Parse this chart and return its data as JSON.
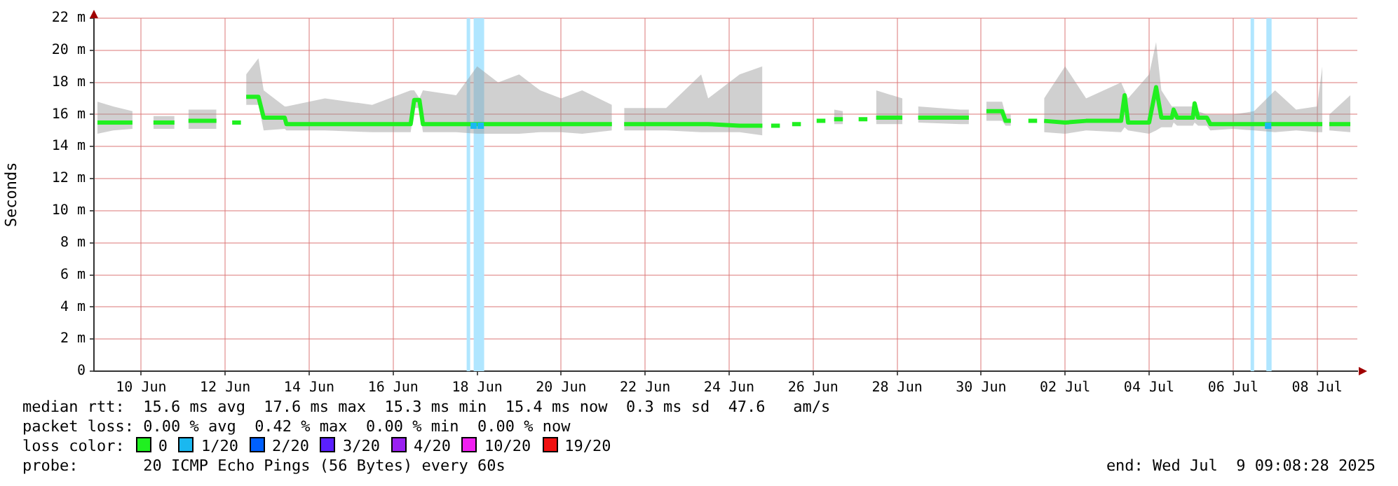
{
  "chart_data": {
    "type": "line",
    "ylabel": "Seconds",
    "legend_title": "loss color:",
    "legend": "bottom",
    "grid": true,
    "marker": "none",
    "line_style": "solid",
    "xlim": [
      "2025-06-08T21:00",
      "2025-07-08T23:00"
    ],
    "xticks": [
      {
        "value": "2025-06-10",
        "label": "10 Jun"
      },
      {
        "value": "2025-06-12",
        "label": "12 Jun"
      },
      {
        "value": "2025-06-14",
        "label": "14 Jun"
      },
      {
        "value": "2025-06-16",
        "label": "16 Jun"
      },
      {
        "value": "2025-06-18",
        "label": "18 Jun"
      },
      {
        "value": "2025-06-20",
        "label": "20 Jun"
      },
      {
        "value": "2025-06-22",
        "label": "22 Jun"
      },
      {
        "value": "2025-06-24",
        "label": "24 Jun"
      },
      {
        "value": "2025-06-26",
        "label": "26 Jun"
      },
      {
        "value": "2025-06-28",
        "label": "28 Jun"
      },
      {
        "value": "2025-06-30",
        "label": "30 Jun"
      },
      {
        "value": "2025-07-02",
        "label": "02 Jul"
      },
      {
        "value": "2025-07-04",
        "label": "04 Jul"
      },
      {
        "value": "2025-07-06",
        "label": "06 Jul"
      },
      {
        "value": "2025-07-08",
        "label": "08 Jul"
      }
    ],
    "ylim": [
      0,
      22
    ],
    "yticks": [
      0,
      {
        "value": 2,
        "label": "2 m"
      },
      {
        "value": 4,
        "label": "4 m"
      },
      {
        "value": 6,
        "label": "6 m"
      },
      {
        "value": 8,
        "label": "8 m"
      },
      {
        "value": 10,
        "label": "10 m"
      },
      {
        "value": 12,
        "label": "12 m"
      },
      {
        "value": 14,
        "label": "14 m"
      },
      {
        "value": 16,
        "label": "16 m"
      },
      {
        "value": 18,
        "label": "18 m"
      },
      {
        "value": 20,
        "label": "20 m"
      },
      {
        "value": 22,
        "label": "22 m"
      }
    ],
    "bands": [
      {
        "axis": "x",
        "from": "2025-06-17T18:00",
        "to": "2025-06-17T20:00",
        "color": "#b0e6ff"
      },
      {
        "axis": "x",
        "from": "2025-06-17T22:00",
        "to": "2025-06-18T04:00",
        "color": "#b0e6ff"
      },
      {
        "axis": "x",
        "from": "2025-07-06T10:00",
        "to": "2025-07-06T12:00",
        "color": "#b0e6ff"
      },
      {
        "axis": "x",
        "from": "2025-07-06T19:00",
        "to": "2025-07-06T22:00",
        "color": "#b0e6ff"
      }
    ],
    "series": [
      {
        "name": "0",
        "color": "#20f020",
        "x": [
          "2025-06-08T23:00",
          "2025-06-09T08:00",
          "2025-06-09T19:00",
          "2025-06-09T22:00",
          "2025-06-10T07:00",
          "2025-06-10T19:00",
          "2025-06-10T22:00",
          "2025-06-11T03:00",
          "2025-06-11T19:00",
          "2025-06-11T22:00",
          "2025-06-12T04:00",
          "2025-06-12T09:00",
          "2025-06-12T10:00",
          "2025-06-12T12:00",
          "2025-06-12T19:00",
          "2025-06-12T22:00",
          "2025-06-13T10:00",
          "2025-06-13T11:00",
          "2025-06-14T09:00",
          "2025-06-15T12:00",
          "2025-06-16T10:00",
          "2025-06-16T12:00",
          "2025-06-16T15:00",
          "2025-06-16T17:00",
          "2025-06-17T12:00",
          "2025-06-18T00:00",
          "2025-06-18T12:00",
          "2025-06-19T00:00",
          "2025-06-19T12:00",
          "2025-06-20T00:00",
          "2025-06-20T12:00",
          "2025-06-21T05:00",
          "2025-06-21T07:00",
          "2025-06-21T12:00",
          "2025-06-22T12:00",
          "2025-06-23T08:00",
          "2025-06-23T12:00",
          "2025-06-24T06:00",
          "2025-06-24T19:00",
          "2025-06-24T23:00",
          "2025-06-25T00:00",
          "2025-06-25T05:00",
          "2025-06-25T07:00",
          "2025-06-25T12:00",
          "2025-06-25T17:00",
          "2025-06-25T22:00",
          "2025-06-26T02:00",
          "2025-06-26T07:00",
          "2025-06-26T09:00",
          "2025-06-26T12:00",
          "2025-06-26T17:00",
          "2025-06-26T22:00",
          "2025-06-27T02:00",
          "2025-06-27T07:00",
          "2025-06-27T09:00",
          "2025-06-27T12:00",
          "2025-06-28T03:00",
          "2025-06-28T07:00",
          "2025-06-28T12:00",
          "2025-06-29T12:00",
          "2025-06-29T17:00",
          "2025-06-29T22:00",
          "2025-06-30T03:00",
          "2025-06-30T12:00",
          "2025-06-30T14:00",
          "2025-06-30T17:00",
          "2025-06-30T22:00",
          "2025-07-01T03:00",
          "2025-07-01T08:00",
          "2025-07-01T10:00",
          "2025-07-01T12:00",
          "2025-07-02T00:00",
          "2025-07-02T12:00",
          "2025-07-03T08:00",
          "2025-07-03T10:00",
          "2025-07-03T12:00",
          "2025-07-04T00:00",
          "2025-07-04T04:00",
          "2025-07-04T07:00",
          "2025-07-04T13:00",
          "2025-07-04T14:00",
          "2025-07-04T16:00",
          "2025-07-05T01:00",
          "2025-07-05T02:00",
          "2025-07-05T04:00",
          "2025-07-05T09:00",
          "2025-07-05T11:00",
          "2025-07-06T00:00",
          "2025-07-06T12:00",
          "2025-07-07T00:00",
          "2025-07-07T12:00",
          "2025-07-08T00:00",
          "2025-07-08T03:00",
          "2025-07-08T05:00",
          "2025-07-08T07:00",
          "2025-07-08T19:00"
        ],
        "values": [
          15.5,
          15.5,
          15.5,
          null,
          15.5,
          15.5,
          null,
          15.6,
          15.6,
          null,
          15.5,
          15.5,
          null,
          17.1,
          17.1,
          15.8,
          15.8,
          15.4,
          15.4,
          15.4,
          15.4,
          16.9,
          16.9,
          15.4,
          15.4,
          15.4,
          15.4,
          15.4,
          15.4,
          15.4,
          15.4,
          15.4,
          null,
          15.4,
          15.4,
          15.4,
          15.4,
          15.3,
          15.3,
          null,
          15.3,
          15.3,
          null,
          15.4,
          15.4,
          null,
          15.6,
          15.6,
          null,
          15.7,
          15.7,
          null,
          15.7,
          15.7,
          null,
          15.8,
          15.8,
          null,
          15.8,
          15.8,
          15.8,
          null,
          16.2,
          16.2,
          15.6,
          15.6,
          null,
          15.6,
          15.6,
          null,
          15.6,
          15.5,
          15.6,
          15.6,
          17.2,
          15.5,
          15.5,
          17.7,
          15.8,
          15.8,
          16.3,
          15.8,
          15.8,
          16.7,
          15.8,
          15.8,
          15.4,
          15.4,
          15.4,
          15.4,
          15.4,
          15.4,
          15.4,
          null,
          15.4,
          15.4
        ],
        "lower": [
          14.8,
          15.0,
          15.1,
          null,
          15.1,
          15.1,
          null,
          15.1,
          15.1,
          null,
          null,
          null,
          null,
          16.6,
          16.6,
          15.0,
          15.1,
          15.0,
          15.0,
          14.9,
          14.9,
          16.4,
          16.4,
          14.9,
          14.9,
          14.8,
          14.8,
          14.8,
          14.9,
          14.9,
          14.8,
          15.0,
          null,
          15.0,
          15.0,
          14.9,
          14.9,
          14.9,
          14.7,
          null,
          null,
          null,
          null,
          null,
          null,
          null,
          null,
          null,
          null,
          15.4,
          15.4,
          null,
          null,
          null,
          null,
          15.4,
          15.4,
          null,
          15.5,
          15.4,
          15.4,
          null,
          15.6,
          15.6,
          15.3,
          15.3,
          null,
          null,
          null,
          null,
          14.9,
          14.8,
          15.0,
          14.9,
          15.2,
          15.0,
          14.8,
          15.0,
          15.2,
          15.2,
          15.5,
          15.3,
          15.3,
          15.5,
          15.3,
          15.3,
          15.0,
          15.1,
          15.0,
          14.9,
          15.0,
          14.9,
          14.9,
          null,
          15.0,
          14.9
        ],
        "upper": [
          16.8,
          16.5,
          16.2,
          null,
          15.9,
          15.9,
          null,
          16.3,
          16.3,
          null,
          null,
          null,
          null,
          18.5,
          19.5,
          17.5,
          16.5,
          16.5,
          17.0,
          16.6,
          17.5,
          17.5,
          17.0,
          17.5,
          17.2,
          19.0,
          18.0,
          18.5,
          17.5,
          17.0,
          17.5,
          16.6,
          null,
          16.4,
          16.4,
          18.5,
          17.0,
          18.5,
          19.0,
          null,
          null,
          null,
          null,
          null,
          null,
          null,
          null,
          null,
          null,
          16.3,
          16.2,
          null,
          null,
          null,
          null,
          17.5,
          17.0,
          null,
          16.5,
          16.3,
          16.3,
          null,
          16.8,
          16.8,
          16.0,
          16.0,
          null,
          null,
          null,
          null,
          17.0,
          19.0,
          17.0,
          18.0,
          17.5,
          17.0,
          18.5,
          20.5,
          17.5,
          16.5,
          16.5,
          16.5,
          16.5,
          16.8,
          16.2,
          16.0,
          16.0,
          16.0,
          16.2,
          17.5,
          16.3,
          16.5,
          19.0,
          null,
          16.0,
          17.2
        ]
      },
      {
        "name": "1/20",
        "type": "scatter",
        "marker": "square",
        "color": "#1ab8f0",
        "x": [
          "2025-06-17T22:00",
          "2025-06-18T02:00",
          "2025-07-06T20:00"
        ],
        "values": [
          15.3,
          15.3,
          15.3
        ]
      },
      {
        "name": "2/20",
        "type": "scatter",
        "color": "#0060ff"
      },
      {
        "name": "3/20",
        "type": "scatter",
        "color": "#5a20ff"
      },
      {
        "name": "4/20",
        "type": "scatter",
        "color": "#9a20f0"
      },
      {
        "name": "10/20",
        "type": "scatter",
        "color": "#f020f0"
      },
      {
        "name": "19/20",
        "type": "scatter",
        "color": "#f01010"
      }
    ],
    "annotations": [
      "median rtt:  15.6 ms avg  17.6 ms max  15.3 ms min  15.4 ms now  0.3 ms sd  47.6   am/s",
      "packet loss: 0.00 % avg  0.42 % max  0.00 % min  0.00 % now",
      "probe:       20 ICMP Echo Pings (56 Bytes) every 60s",
      "end: Wed Jul  9 09:08:28 2025"
    ]
  }
}
